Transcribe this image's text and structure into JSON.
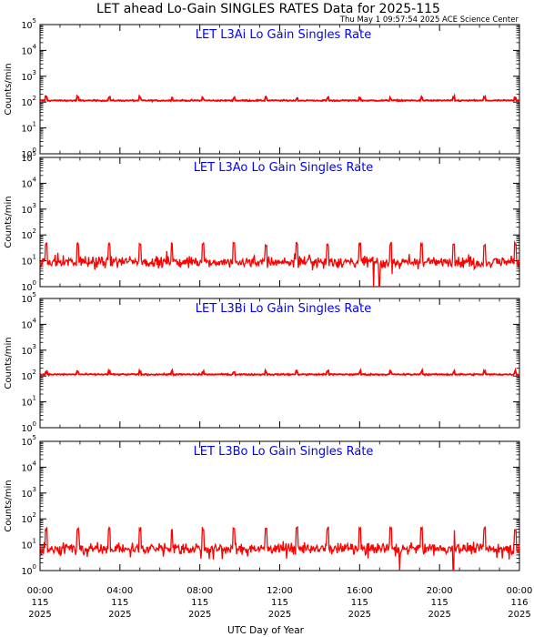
{
  "header": {
    "title": "LET ahead Lo-Gain SINGLES RATES Data for 2025-115",
    "timestamp": "Thu May  1 09:57:54 2025 ACE Science Center"
  },
  "chart_data": {
    "type": "line",
    "y_scale": "log",
    "ylim": [
      1,
      100000
    ],
    "y_ticks": [
      {
        "base": "10",
        "exp": "0"
      },
      {
        "base": "10",
        "exp": "1"
      },
      {
        "base": "10",
        "exp": "2"
      },
      {
        "base": "10",
        "exp": "3"
      },
      {
        "base": "10",
        "exp": "4"
      },
      {
        "base": "10",
        "exp": "5"
      }
    ],
    "ylabel": "Counts/min",
    "xlabel": "UTC Day of Year",
    "x_range_hours": [
      0,
      24
    ],
    "x_ticks": [
      {
        "hour": 0,
        "time": "00:00",
        "doy": "115",
        "year": "2025"
      },
      {
        "hour": 4,
        "time": "04:00",
        "doy": "115",
        "year": "2025"
      },
      {
        "hour": 8,
        "time": "08:00",
        "doy": "115",
        "year": "2025"
      },
      {
        "hour": 12,
        "time": "12:00",
        "doy": "115",
        "year": "2025"
      },
      {
        "hour": 16,
        "time": "16:00",
        "doy": "115",
        "year": "2025"
      },
      {
        "hour": 20,
        "time": "20:00",
        "doy": "115",
        "year": "2025"
      },
      {
        "hour": 24,
        "time": "00:00",
        "doy": "116",
        "year": "2025"
      }
    ],
    "line_color": "#ff0000",
    "panels": [
      {
        "name": "LET L3Ai Lo Gain Singles Rate",
        "baseline": 115,
        "noise_dex": 0.025,
        "spike_factor": 1.3,
        "dropouts": []
      },
      {
        "name": "LET L3Ao Lo Gain Singles Rate",
        "baseline": 9,
        "noise_dex": 0.2,
        "spike_factor": 5.0,
        "dropouts": [
          16.7,
          17.0
        ]
      },
      {
        "name": "LET L3Bi Lo Gain Singles Rate",
        "baseline": 115,
        "noise_dex": 0.025,
        "spike_factor": 1.3,
        "dropouts": []
      },
      {
        "name": "LET L3Bo Lo Gain Singles Rate",
        "baseline": 7,
        "noise_dex": 0.2,
        "spike_factor": 6.0,
        "dropouts": [
          18.0,
          20.7
        ]
      }
    ],
    "spike_hours": [
      0.3,
      1.9,
      3.45,
      5.0,
      6.6,
      8.15,
      9.7,
      11.3,
      12.85,
      14.4,
      16.0,
      17.55,
      19.1,
      20.7,
      22.25,
      23.8
    ]
  }
}
